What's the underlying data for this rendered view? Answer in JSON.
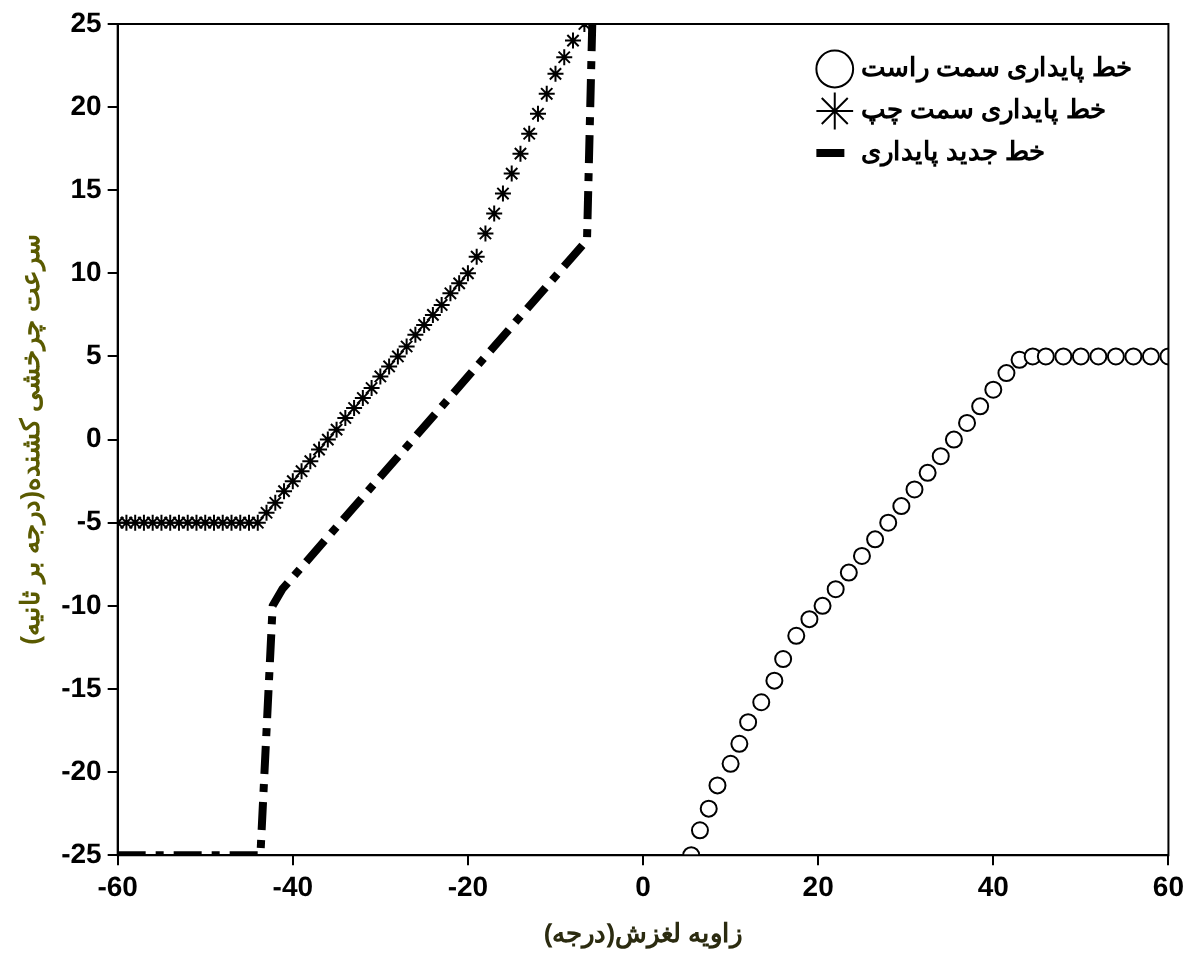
{
  "chart_data": {
    "type": "scatter",
    "xlabel": "زاویه لغزش(درجه)",
    "ylabel": "سرعت چرخشی کشنده(درجه بر ثانیه)",
    "xlim": [
      -60,
      60
    ],
    "xticks": [
      -60,
      -40,
      -20,
      0,
      20,
      40,
      60
    ],
    "ylim": [
      -25,
      25
    ],
    "yticks": [
      -25,
      -20,
      -15,
      -10,
      -5,
      0,
      5,
      10,
      15,
      20,
      25
    ],
    "grid": false,
    "legend": "top right",
    "series": [
      {
        "name": "خط پایداری سمت راست",
        "type": "scatter",
        "marker": "circle",
        "color": "#000000",
        "x": [
          5.5,
          6.5,
          7.5,
          8.5,
          10,
          11,
          12,
          13.5,
          15,
          16,
          17.5,
          19,
          20.5,
          22,
          23.5,
          25,
          26.5,
          28,
          29.5,
          31,
          32.5,
          34,
          35.5,
          37,
          38.5,
          40,
          41.5,
          43,
          44.5,
          46,
          48,
          50,
          52,
          54,
          56,
          58,
          60
        ],
        "values": [
          -25,
          -23.5,
          -22.2,
          -20.8,
          -19.5,
          -18.3,
          -17,
          -15.8,
          -14.5,
          -13.2,
          -11.8,
          -10.8,
          -10,
          -9,
          -8,
          -7,
          -6,
          -5,
          -4,
          -3,
          -2,
          -1,
          0,
          1,
          2,
          3,
          4,
          4.8,
          5,
          5,
          5,
          5,
          5,
          5,
          5,
          5,
          5
        ]
      },
      {
        "name": "خط پایداری سمت چپ",
        "type": "scatter",
        "marker": "cross",
        "color": "#000000",
        "x": [
          -60,
          -59,
          -58,
          -57,
          -56,
          -55,
          -54,
          -53,
          -52,
          -51,
          -50,
          -49,
          -48,
          -47,
          -46,
          -45,
          -44,
          -43,
          -42,
          -41,
          -40,
          -39,
          -38,
          -37,
          -36,
          -35,
          -34,
          -33,
          -32,
          -31,
          -30,
          -29,
          -28,
          -27,
          -26,
          -25,
          -24,
          -23,
          -22,
          -21,
          -20,
          -19,
          -18,
          -17,
          -16,
          -15,
          -14,
          -13,
          -12,
          -11,
          -10,
          -9,
          -8,
          -6.7
        ],
        "values": [
          -5,
          -5,
          -5,
          -5,
          -5,
          -5,
          -5,
          -5,
          -5,
          -5,
          -5,
          -5,
          -5,
          -5,
          -5,
          -5,
          -5,
          -4.4,
          -3.8,
          -3.1,
          -2.5,
          -1.9,
          -1.3,
          -0.6,
          0,
          0.6,
          1.3,
          1.9,
          2.5,
          3.1,
          3.8,
          4.4,
          5,
          5.6,
          6.3,
          6.9,
          7.5,
          8.1,
          8.8,
          9.4,
          10,
          11,
          12.4,
          13.6,
          14.8,
          16,
          17.2,
          18.4,
          19.6,
          20.8,
          22,
          23,
          24,
          25
        ]
      },
      {
        "name": "خط جدید پایداری",
        "type": "line",
        "marker": "none",
        "line_style": "dashed",
        "color": "#000000",
        "x": [
          -60,
          -43.7,
          -42.3,
          -41.2,
          -6.4,
          -5.8
        ],
        "values": [
          -25,
          -25,
          -10,
          -9,
          12,
          25
        ]
      }
    ]
  }
}
